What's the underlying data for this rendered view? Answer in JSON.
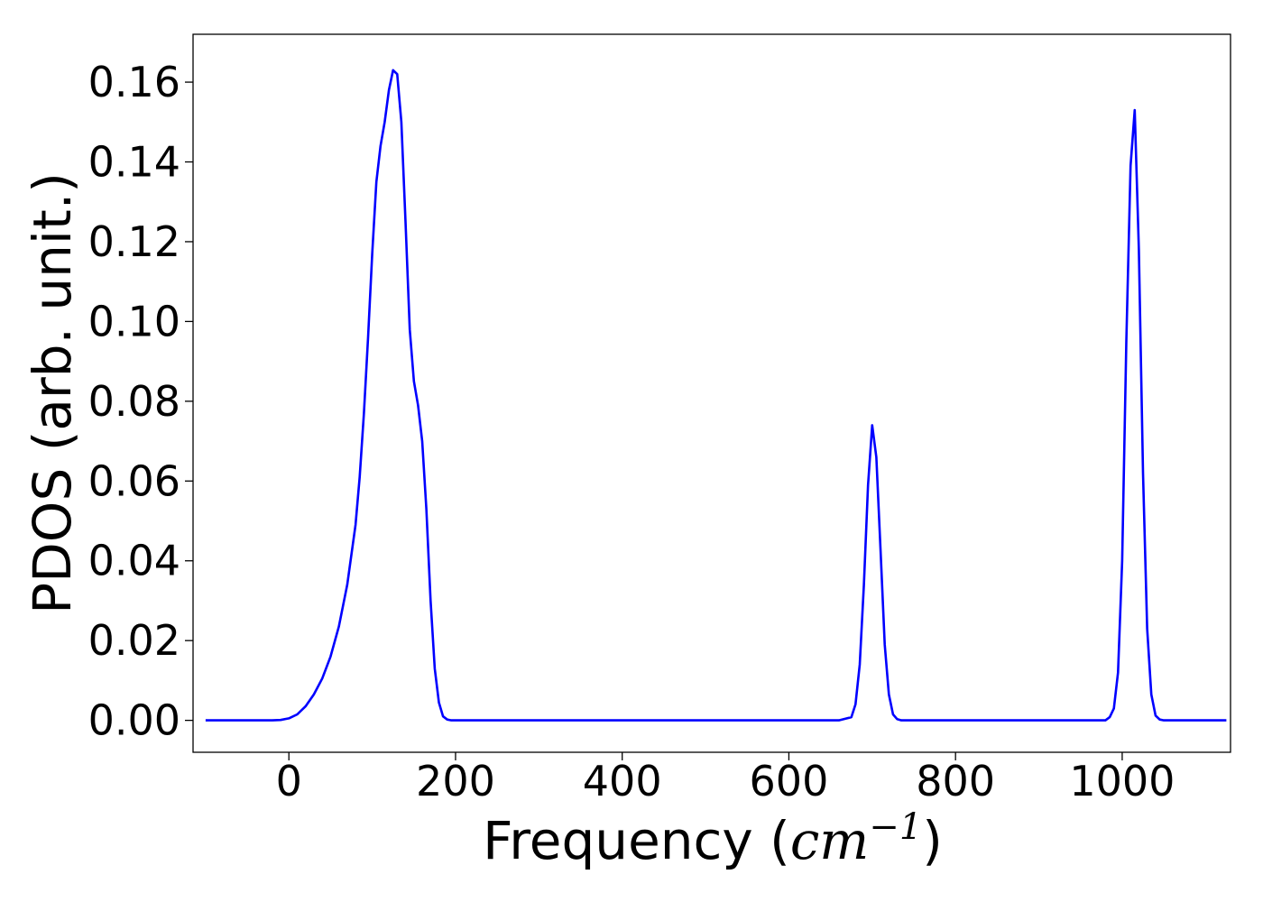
{
  "chart_data": {
    "type": "line",
    "title": "",
    "xlabel": "Frequency",
    "xlabel_unit_base": "cm",
    "xlabel_unit_exp": "−1",
    "ylabel": "PDOS (arb. unit.)",
    "xlim": [
      -115,
      1130
    ],
    "ylim": [
      -0.008,
      0.172
    ],
    "xticks": [
      0,
      200,
      400,
      600,
      800,
      1000
    ],
    "xtick_labels": [
      "0",
      "200",
      "400",
      "600",
      "800",
      "1000"
    ],
    "yticks": [
      0,
      0.02,
      0.04,
      0.06,
      0.08,
      0.1,
      0.12,
      0.14,
      0.16
    ],
    "ytick_labels": [
      "0.00",
      "0.02",
      "0.04",
      "0.06",
      "0.08",
      "0.10",
      "0.12",
      "0.14",
      "0.16"
    ],
    "grid": false,
    "legend": false,
    "series": [
      {
        "color": "#0000ff",
        "x": [
          -100,
          -80,
          -60,
          -40,
          -20,
          -10,
          0,
          10,
          20,
          30,
          40,
          50,
          60,
          70,
          80,
          85,
          90,
          95,
          100,
          105,
          110,
          115,
          120,
          125,
          130,
          135,
          140,
          145,
          150,
          155,
          160,
          165,
          170,
          175,
          180,
          185,
          190,
          195,
          200,
          205,
          210,
          220,
          300,
          400,
          500,
          600,
          660,
          675,
          680,
          685,
          690,
          695,
          700,
          705,
          710,
          715,
          720,
          725,
          730,
          735,
          740,
          745,
          750,
          760,
          800,
          900,
          980,
          985,
          990,
          995,
          1000,
          1005,
          1010,
          1015,
          1020,
          1025,
          1030,
          1035,
          1040,
          1045,
          1050,
          1055,
          1060,
          1070,
          1080,
          1100,
          1125
        ],
        "y": [
          0,
          0,
          0,
          0,
          0,
          0.0001,
          0.0005,
          0.0015,
          0.0035,
          0.0065,
          0.0105,
          0.016,
          0.0235,
          0.034,
          0.049,
          0.061,
          0.077,
          0.096,
          0.117,
          0.135,
          0.144,
          0.15,
          0.158,
          0.163,
          0.162,
          0.15,
          0.125,
          0.098,
          0.085,
          0.079,
          0.07,
          0.053,
          0.03,
          0.013,
          0.0045,
          0.001,
          0.0002,
          0,
          0,
          0,
          0,
          0,
          0,
          0,
          0,
          0,
          0,
          0.0008,
          0.004,
          0.014,
          0.034,
          0.059,
          0.074,
          0.066,
          0.043,
          0.019,
          0.0065,
          0.0015,
          0.0003,
          0,
          0,
          0,
          0,
          0,
          0,
          0,
          0,
          0.0008,
          0.003,
          0.012,
          0.04,
          0.095,
          0.139,
          0.153,
          0.118,
          0.062,
          0.023,
          0.0065,
          0.0012,
          0.0002,
          0,
          0,
          0,
          0,
          0,
          0,
          0
        ]
      }
    ]
  }
}
